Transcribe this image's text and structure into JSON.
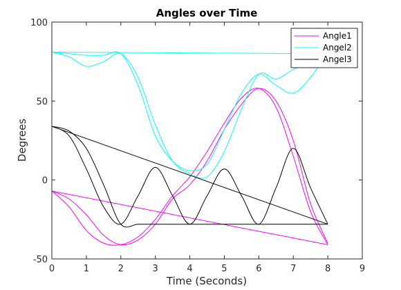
{
  "chart_data": {
    "type": "line",
    "title": "Angles over Time",
    "xlabel": "Time (Seconds)",
    "ylabel": "Degrees",
    "xlim": [
      0,
      9
    ],
    "ylim": [
      -50,
      100
    ],
    "xticks": [
      0,
      1,
      2,
      3,
      4,
      5,
      6,
      7,
      8,
      9
    ],
    "yticks": [
      -50,
      0,
      50,
      100
    ],
    "grid": false,
    "legend_position": "top-right",
    "series": [
      {
        "name": "Angle1",
        "color": "#ff00ff",
        "traces": [
          {
            "x": [
              0,
              0.5,
              1,
              1.5,
              2,
              2.5,
              3,
              3.5,
              4,
              4.5,
              5,
              5.5,
              6,
              6.5,
              7,
              7.5,
              8
            ],
            "y": [
              -7,
              -12,
              -22,
              -35,
              -41,
              -38,
              -28,
              -12,
              -3,
              12,
              32,
              48,
              58,
              50,
              25,
              -15,
              -40
            ]
          },
          {
            "x": [
              0,
              0.5,
              1,
              1.5,
              2,
              2.5,
              3,
              3.5,
              4,
              4.5,
              5,
              5.5,
              6,
              6.5,
              7,
              7.5,
              8
            ],
            "y": [
              -7,
              -17,
              -32,
              -40,
              -41,
              -36,
              -25,
              -10,
              2,
              18,
              36,
              52,
              58,
              46,
              15,
              -20,
              -41
            ]
          },
          {
            "x": [
              0,
              8
            ],
            "y": [
              -7,
              -41
            ]
          }
        ]
      },
      {
        "name": "Angel2",
        "color": "#00ffff",
        "traces": [
          {
            "x": [
              0,
              0.5,
              1,
              1.5,
              2,
              2.5,
              3,
              3.5,
              4,
              4.5,
              5,
              5.5,
              6,
              6.5,
              7,
              7.5,
              8
            ],
            "y": [
              81,
              78,
              72,
              75,
              80,
              65,
              35,
              12,
              4,
              2,
              18,
              45,
              67,
              64,
              70,
              75,
              81
            ]
          },
          {
            "x": [
              0,
              0.5,
              1,
              1.5,
              2,
              2.5,
              3,
              3.5,
              4,
              4.5,
              5,
              5.5,
              6,
              6.5,
              7,
              7.5,
              8
            ],
            "y": [
              81,
              80,
              79,
              79,
              80,
              60,
              28,
              12,
              6,
              10,
              32,
              55,
              67,
              60,
              55,
              65,
              81
            ]
          },
          {
            "x": [
              0,
              8
            ],
            "y": [
              81,
              80
            ]
          }
        ]
      },
      {
        "name": "Angel3",
        "color": "#000000",
        "traces": [
          {
            "x": [
              0,
              0.5,
              1,
              1.5,
              2,
              2.5,
              3,
              3.5,
              4,
              4.5,
              5,
              5.5,
              6,
              6.5,
              7,
              7.5,
              8
            ],
            "y": [
              34,
              28,
              7,
              -17,
              -28,
              -10,
              8,
              -10,
              -28,
              -10,
              7,
              -10,
              -28,
              -5,
              20,
              -5,
              -28
            ]
          },
          {
            "x": [
              0,
              0.5,
              1,
              1.5,
              2,
              2.5,
              3,
              3.5,
              4,
              4.5,
              5,
              5.5,
              6,
              6.5,
              7,
              7.5,
              8
            ],
            "y": [
              34,
              31,
              20,
              -3,
              -28,
              -28,
              -28,
              -28,
              -28,
              -28,
              -28,
              -28,
              -28,
              -28,
              -28,
              -28,
              -28
            ]
          },
          {
            "x": [
              0,
              8
            ],
            "y": [
              34,
              -28
            ]
          }
        ]
      }
    ]
  }
}
